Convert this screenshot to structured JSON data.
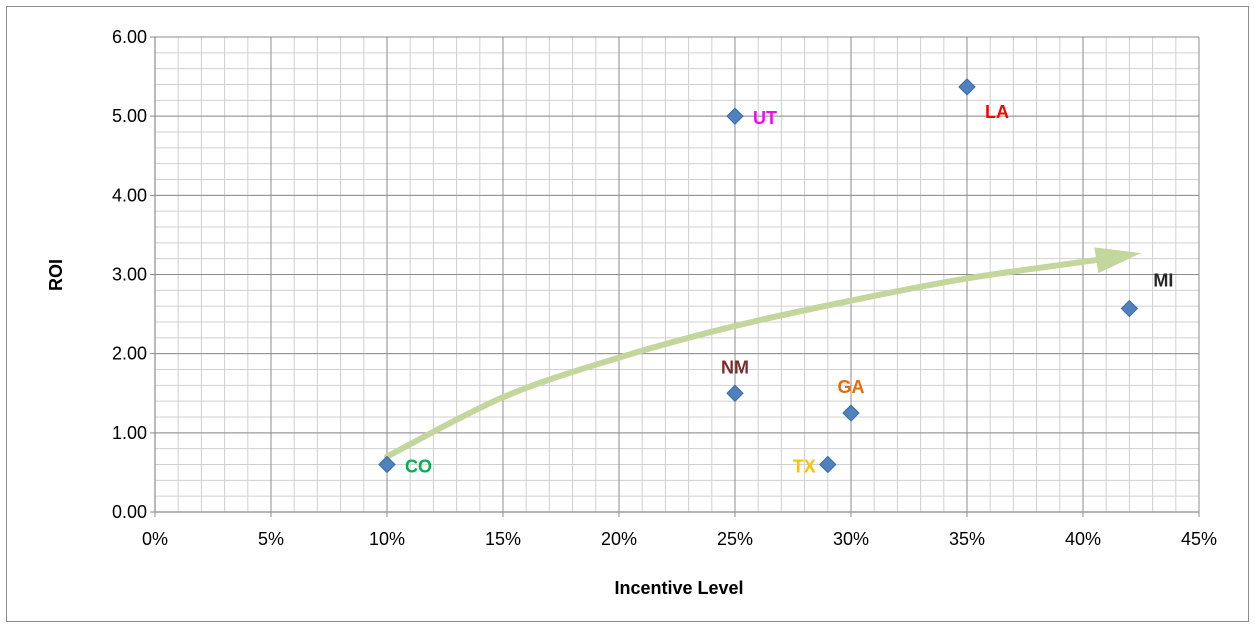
{
  "chart_data": {
    "type": "scatter",
    "xlabel": "Incentive Level",
    "ylabel": "ROI",
    "xlim": [
      0,
      0.45
    ],
    "ylim": [
      0,
      6
    ],
    "x_ticks": [
      {
        "value": 0,
        "label": "0%"
      },
      {
        "value": 0.05,
        "label": "5%"
      },
      {
        "value": 0.1,
        "label": "10%"
      },
      {
        "value": 0.15,
        "label": "15%"
      },
      {
        "value": 0.2,
        "label": "20%"
      },
      {
        "value": 0.25,
        "label": "25%"
      },
      {
        "value": 0.3,
        "label": "30%"
      },
      {
        "value": 0.35,
        "label": "35%"
      },
      {
        "value": 0.4,
        "label": "40%"
      },
      {
        "value": 0.45,
        "label": "45%"
      }
    ],
    "y_ticks": [
      {
        "value": 0,
        "label": "0.00"
      },
      {
        "value": 1,
        "label": "1.00"
      },
      {
        "value": 2,
        "label": "2.00"
      },
      {
        "value": 3,
        "label": "3.00"
      },
      {
        "value": 4,
        "label": "4.00"
      },
      {
        "value": 5,
        "label": "5.00"
      },
      {
        "value": 6,
        "label": "6.00"
      }
    ],
    "x_minor_step": 0.01,
    "y_minor_step": 0.2,
    "grid": true,
    "marker": "diamond",
    "marker_color": "#4f81bd",
    "points": [
      {
        "label": "CO",
        "x": 0.1,
        "y": 0.6,
        "label_color": "#00b050",
        "label_pos": "right"
      },
      {
        "label": "UT",
        "x": 0.25,
        "y": 5.0,
        "label_color": "#ff00ff",
        "label_pos": "right"
      },
      {
        "label": "NM",
        "x": 0.25,
        "y": 1.5,
        "label_color": "#7b2c2c",
        "label_pos": "above"
      },
      {
        "label": "TX",
        "x": 0.29,
        "y": 0.6,
        "label_color": "#ffc000",
        "label_pos": "left"
      },
      {
        "label": "GA",
        "x": 0.3,
        "y": 1.25,
        "label_color": "#e46c0a",
        "label_pos": "above"
      },
      {
        "label": "LA",
        "x": 0.35,
        "y": 5.37,
        "label_color": "#ff0000",
        "label_pos": "below-right"
      },
      {
        "label": "MI",
        "x": 0.42,
        "y": 2.57,
        "label_color": "#262626",
        "label_pos": "above-right"
      }
    ],
    "trend_arrow": {
      "color": "#c3d69b",
      "path": [
        {
          "x": 0.1,
          "y": 0.7
        },
        {
          "x": 0.15,
          "y": 1.45
        },
        {
          "x": 0.2,
          "y": 1.95
        },
        {
          "x": 0.25,
          "y": 2.35
        },
        {
          "x": 0.3,
          "y": 2.67
        },
        {
          "x": 0.35,
          "y": 2.95
        },
        {
          "x": 0.41,
          "y": 3.2
        }
      ],
      "head": {
        "x": 0.425,
        "y": 3.27
      }
    }
  }
}
